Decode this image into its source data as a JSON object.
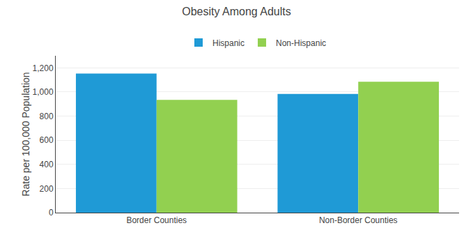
{
  "chart_data": {
    "type": "bar",
    "title": "Obesity Among Adults",
    "ylabel": "Rate per 100,000 Population",
    "categories": [
      "Border Counties",
      "Non-Border Counties"
    ],
    "series": [
      {
        "name": "Hispanic",
        "color": "#1f9ad6",
        "values": [
          1153,
          983
        ]
      },
      {
        "name": "Non-Hispanic",
        "color": "#92d050",
        "values": [
          934,
          1085
        ]
      }
    ],
    "ylim": [
      0,
      1300
    ],
    "yticks": [
      0,
      200,
      400,
      600,
      800,
      {
        "value": 1000,
        "label": "1,000"
      },
      {
        "value": 1200,
        "label": "1,200"
      }
    ],
    "grid": true,
    "legend": "top"
  }
}
